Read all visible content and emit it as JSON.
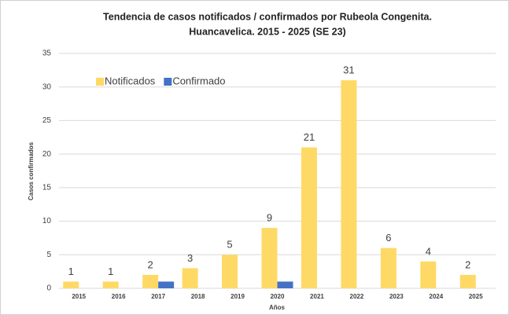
{
  "chart_data": {
    "type": "bar",
    "title": [
      "Tendencia de casos notificados / confirmados por Rubeola Congenita.",
      "Huancavelica. 2015 - 2025 (SE 23)"
    ],
    "xlabel": "Años",
    "ylabel": "Casos confirmados",
    "categories": [
      "2015",
      "2016",
      "2017",
      "2018",
      "2019",
      "2020",
      "2021",
      "2022",
      "2023",
      "2024",
      "2025"
    ],
    "series": [
      {
        "name": "Notificados",
        "color": "#ffd966",
        "values": [
          1,
          1,
          2,
          3,
          5,
          9,
          21,
          31,
          6,
          4,
          2
        ],
        "data_labels": true
      },
      {
        "name": "Confirmado",
        "color": "#4472c4",
        "values": [
          0,
          0,
          1,
          0,
          0,
          1,
          0,
          0,
          0,
          0,
          0
        ],
        "data_labels": false
      }
    ],
    "ylim": [
      0,
      35
    ],
    "yticks": [
      0,
      5,
      10,
      15,
      20,
      25,
      30,
      35
    ],
    "grid": true,
    "legend": "upper left"
  }
}
